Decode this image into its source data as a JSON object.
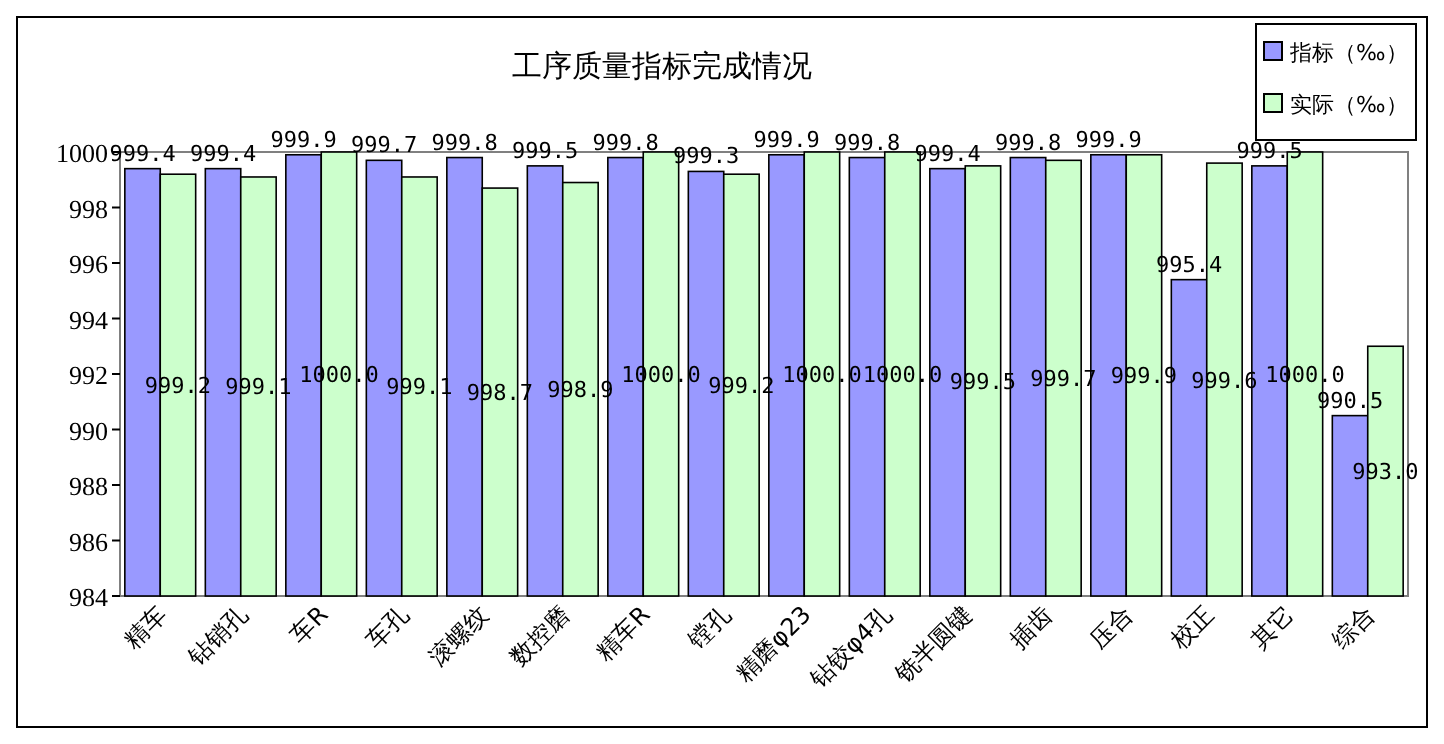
{
  "chart_data": {
    "type": "bar",
    "title": "工序质量指标完成情况",
    "categories": [
      "精车",
      "钻销孔",
      "车R",
      "车孔",
      "滚螺纹",
      "数控磨",
      "精车R",
      "镗孔",
      "精磨φ23",
      "钻铰φ4孔",
      "铣半圆键",
      "插齿",
      "压合",
      "校正",
      "其它",
      "综合"
    ],
    "series": [
      {
        "name": "指标（‰）",
        "color": "#9999ff",
        "values": [
          999.4,
          999.4,
          999.9,
          999.7,
          999.8,
          999.5,
          999.8,
          999.3,
          999.9,
          999.8,
          999.4,
          999.8,
          999.9,
          995.4,
          999.5,
          990.5
        ],
        "value_labels": [
          "999.4",
          "999.4",
          "999.9",
          "999.7",
          "999.8",
          "999.5",
          "999.8",
          "999.3",
          "999.9",
          "999.8",
          "999.4",
          "999.8",
          "999.9",
          "995.4",
          "999.5",
          "990.5"
        ]
      },
      {
        "name": "实际（‰）",
        "color": "#ccffcc",
        "values": [
          999.2,
          999.1,
          1000.0,
          999.1,
          998.7,
          998.9,
          1000.0,
          999.2,
          1000.0,
          1000.0,
          999.5,
          999.7,
          999.9,
          999.6,
          1000.0,
          993.0
        ],
        "value_labels": [
          "999.2",
          "999.1",
          "1000.0",
          "999.1",
          "998.7",
          "998.9",
          "1000.0",
          "999.2",
          "1000.0",
          "1000.0",
          "999.5",
          "999.7",
          "999.9",
          "999.6",
          "1000.0",
          "993.0"
        ]
      }
    ],
    "ylim": [
      984,
      1000
    ],
    "yticks": [
      984,
      986,
      988,
      990,
      992,
      994,
      996,
      998,
      1000
    ],
    "legend": "top right",
    "grid": false
  }
}
